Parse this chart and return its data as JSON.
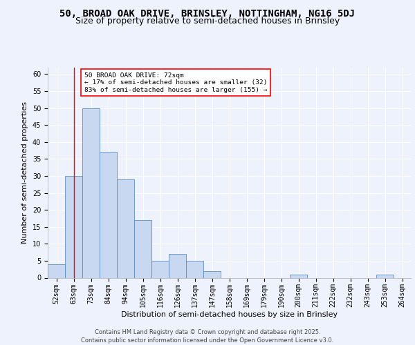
{
  "title1": "50, BROAD OAK DRIVE, BRINSLEY, NOTTINGHAM, NG16 5DJ",
  "title2": "Size of property relative to semi-detached houses in Brinsley",
  "xlabel": "Distribution of semi-detached houses by size in Brinsley",
  "ylabel": "Number of semi-detached properties",
  "categories": [
    "52sqm",
    "63sqm",
    "73sqm",
    "84sqm",
    "94sqm",
    "105sqm",
    "116sqm",
    "126sqm",
    "137sqm",
    "147sqm",
    "158sqm",
    "169sqm",
    "179sqm",
    "190sqm",
    "200sqm",
    "211sqm",
    "222sqm",
    "232sqm",
    "243sqm",
    "253sqm",
    "264sqm"
  ],
  "values": [
    4,
    30,
    50,
    37,
    29,
    17,
    5,
    7,
    5,
    2,
    0,
    0,
    0,
    0,
    1,
    0,
    0,
    0,
    0,
    1,
    0
  ],
  "bar_color": "#c8d8f0",
  "bar_edge_color": "#5b8ec0",
  "red_line_x": 1.5,
  "annotation_text": "50 BROAD OAK DRIVE: 72sqm\n← 17% of semi-detached houses are smaller (32)\n83% of semi-detached houses are larger (155) →",
  "annotation_box_color": "white",
  "annotation_box_edge_color": "red",
  "ylim": [
    0,
    62
  ],
  "yticks": [
    0,
    5,
    10,
    15,
    20,
    25,
    30,
    35,
    40,
    45,
    50,
    55,
    60
  ],
  "bg_color": "#edf2fc",
  "plot_bg_color": "#edf2fc",
  "grid_color": "white",
  "footer": "Contains HM Land Registry data © Crown copyright and database right 2025.\nContains public sector information licensed under the Open Government Licence v3.0.",
  "title_fontsize": 10,
  "subtitle_fontsize": 9,
  "tick_fontsize": 7,
  "ylabel_fontsize": 8,
  "xlabel_fontsize": 8,
  "footer_fontsize": 6
}
